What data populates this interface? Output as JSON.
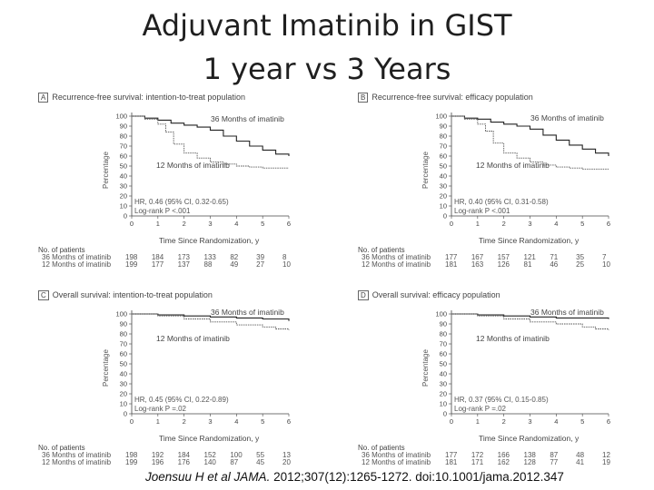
{
  "title_line1": "Adjuvant Imatinib in GIST",
  "title_line2": "1 year vs 3 Years",
  "footer": {
    "authors": "Joensuu H et al JAMA.",
    "rest": " 2012;307(12):1265-1272. doi:10.1001/jama.2012.347"
  },
  "chart_data": [
    {
      "type": "line",
      "letter": "A",
      "title": "Recurrence-free survival: intention-to-treat population",
      "ylabel": "Percentage",
      "xlabel": "Time Since Randomization, y",
      "xlim": [
        0,
        6
      ],
      "ylim": [
        0,
        100
      ],
      "xticks": [
        "0",
        "1",
        "2",
        "3",
        "4",
        "5",
        "6"
      ],
      "yticks": [
        "0",
        "10",
        "20",
        "30",
        "40",
        "50",
        "60",
        "70",
        "80",
        "90",
        "100"
      ],
      "hr_line1": "HR, 0.46 (95% CI, 0.32-0.65)",
      "hr_line2": "Log-rank P <.001",
      "series": [
        {
          "name": "36 Months of imatinib",
          "x": [
            0,
            0.5,
            1,
            1.5,
            2,
            2.5,
            3,
            3.5,
            4,
            4.5,
            5,
            5.5,
            6
          ],
          "y": [
            100,
            98,
            96,
            93,
            91,
            89,
            86,
            80,
            75,
            70,
            66,
            62,
            60
          ]
        },
        {
          "name": "12 Months of imatinib",
          "x": [
            0,
            0.5,
            1,
            1.3,
            1.6,
            2,
            2.5,
            3,
            3.5,
            4,
            4.5,
            5,
            5.5,
            6
          ],
          "y": [
            100,
            97,
            92,
            84,
            72,
            63,
            58,
            54,
            52,
            50,
            49,
            48,
            48,
            48
          ]
        }
      ],
      "risk_header": "No. of patients",
      "risk_rows": [
        {
          "label": "36 Months of imatinib",
          "values": [
            "198",
            "184",
            "173",
            "133",
            "82",
            "39",
            "8"
          ]
        },
        {
          "label": "12 Months of imatinib",
          "values": [
            "199",
            "177",
            "137",
            "88",
            "49",
            "27",
            "10"
          ]
        }
      ]
    },
    {
      "type": "line",
      "letter": "B",
      "title": "Recurrence-free survival: efficacy population",
      "ylabel": "Percentage",
      "xlabel": "Time Since Randomization, y",
      "xlim": [
        0,
        6
      ],
      "ylim": [
        0,
        100
      ],
      "xticks": [
        "0",
        "1",
        "2",
        "3",
        "4",
        "5",
        "6"
      ],
      "yticks": [
        "0",
        "10",
        "20",
        "30",
        "40",
        "50",
        "60",
        "70",
        "80",
        "90",
        "100"
      ],
      "hr_line1": "HR, 0.40 (95% CI, 0.31-0.58)",
      "hr_line2": "Log-rank P <.001",
      "series": [
        {
          "name": "36 Months of imatinib",
          "x": [
            0,
            0.5,
            1,
            1.5,
            2,
            2.5,
            3,
            3.5,
            4,
            4.5,
            5,
            5.5,
            6
          ],
          "y": [
            100,
            98,
            97,
            94,
            92,
            90,
            87,
            81,
            76,
            71,
            67,
            63,
            60
          ]
        },
        {
          "name": "12 Months of imatinib",
          "x": [
            0,
            0.5,
            1,
            1.3,
            1.6,
            2,
            2.5,
            3,
            3.5,
            4,
            4.5,
            5,
            5.5,
            6
          ],
          "y": [
            100,
            97,
            92,
            85,
            73,
            63,
            58,
            54,
            51,
            49,
            48,
            47,
            47,
            47
          ]
        }
      ],
      "risk_header": "No. of patients",
      "risk_rows": [
        {
          "label": "36 Months of imatinib",
          "values": [
            "177",
            "167",
            "157",
            "121",
            "71",
            "35",
            "7"
          ]
        },
        {
          "label": "12 Months of imatinib",
          "values": [
            "181",
            "163",
            "126",
            "81",
            "46",
            "25",
            "10"
          ]
        }
      ]
    },
    {
      "type": "line",
      "letter": "C",
      "title": "Overall survival: intention-to-treat population",
      "ylabel": "Percentage",
      "xlabel": "Time Since Randomization, y",
      "xlim": [
        0,
        6
      ],
      "ylim": [
        0,
        100
      ],
      "xticks": [
        "0",
        "1",
        "2",
        "3",
        "4",
        "5",
        "6"
      ],
      "yticks": [
        "0",
        "10",
        "20",
        "30",
        "40",
        "50",
        "60",
        "70",
        "80",
        "90",
        "100"
      ],
      "hr_line1": "HR, 0.45 (95% CI, 0.22-0.89)",
      "hr_line2": "Log-rank P =.02",
      "series": [
        {
          "name": "36 Months of imatinib",
          "x": [
            0,
            1,
            2,
            3,
            4,
            5,
            6
          ],
          "y": [
            100,
            99,
            98,
            97,
            96,
            95,
            93
          ]
        },
        {
          "name": "12 Months of imatinib",
          "x": [
            0,
            1,
            2,
            3,
            4,
            5,
            5.5,
            6
          ],
          "y": [
            100,
            98,
            95,
            92,
            89,
            87,
            85,
            84
          ]
        }
      ],
      "risk_header": "No. of patients",
      "risk_rows": [
        {
          "label": "36 Months of imatinib",
          "values": [
            "198",
            "192",
            "184",
            "152",
            "100",
            "55",
            "13"
          ]
        },
        {
          "label": "12 Months of imatinib",
          "values": [
            "199",
            "196",
            "176",
            "140",
            "87",
            "45",
            "20"
          ]
        }
      ]
    },
    {
      "type": "line",
      "letter": "D",
      "title": "Overall survival: efficacy population",
      "ylabel": "Percentage",
      "xlabel": "Time Since Randomization, y",
      "xlim": [
        0,
        6
      ],
      "ylim": [
        0,
        100
      ],
      "xticks": [
        "0",
        "1",
        "2",
        "3",
        "4",
        "5",
        "6"
      ],
      "yticks": [
        "0",
        "10",
        "20",
        "30",
        "40",
        "50",
        "60",
        "70",
        "80",
        "90",
        "100"
      ],
      "hr_line1": "HR, 0.37 (95% CI, 0.15-0.85)",
      "hr_line2": "Log-rank P =.02",
      "series": [
        {
          "name": "36 Months of imatinib",
          "x": [
            0,
            1,
            2,
            3,
            4,
            5,
            6
          ],
          "y": [
            100,
            99,
            98,
            97,
            96,
            96,
            95
          ]
        },
        {
          "name": "12 Months of imatinib",
          "x": [
            0,
            1,
            2,
            3,
            4,
            5,
            5.5,
            6
          ],
          "y": [
            100,
            98,
            95,
            92,
            90,
            87,
            85,
            84
          ]
        }
      ],
      "risk_header": "No. of patients",
      "risk_rows": [
        {
          "label": "36 Months of imatinib",
          "values": [
            "177",
            "172",
            "166",
            "138",
            "87",
            "48",
            "12"
          ]
        },
        {
          "label": "12 Months of imatinib",
          "values": [
            "181",
            "171",
            "162",
            "128",
            "77",
            "41",
            "19"
          ]
        }
      ]
    }
  ]
}
